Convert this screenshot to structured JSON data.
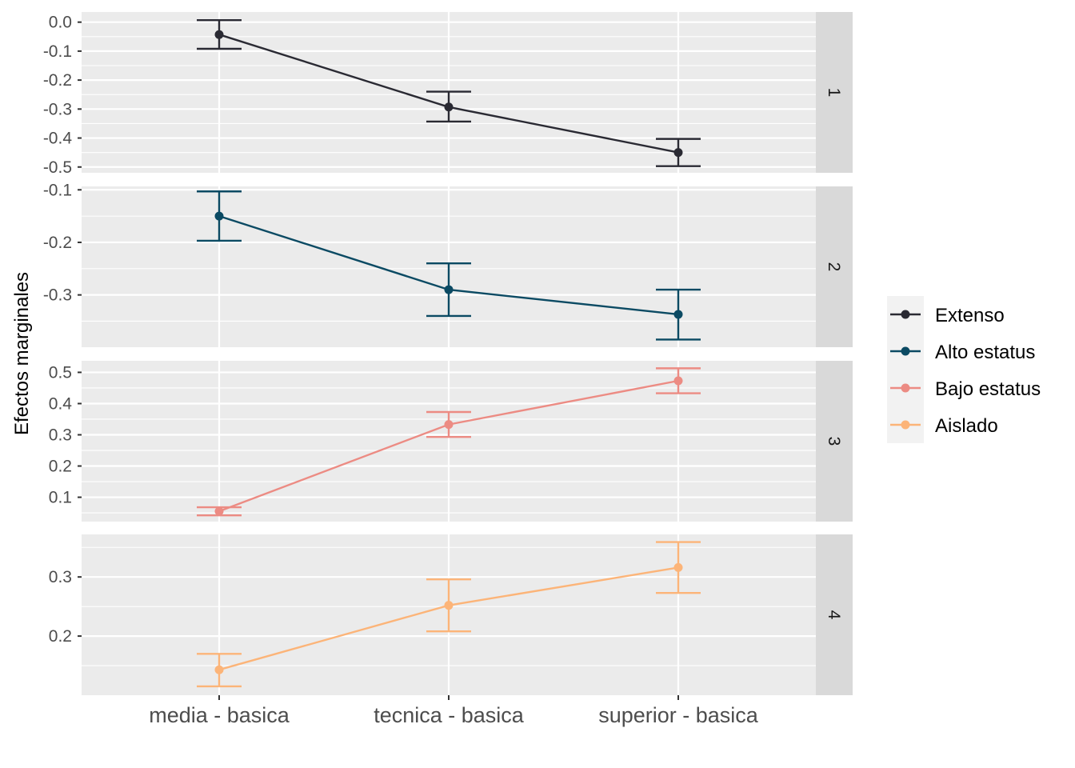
{
  "chart_data": {
    "type": "line",
    "ylabel": "Efectos marginales",
    "categories": [
      "media - basica",
      "tecnica - basica",
      "superior - basica"
    ],
    "colors": {
      "panel_bg": "#ebebeb",
      "strip_bg": "#d9d9d9",
      "grid": "#ffffff"
    },
    "legend": {
      "position": "right"
    },
    "facets": [
      {
        "strip": "1",
        "series": "Extenso",
        "color": "#2a2a33",
        "ylim": [
          -0.52,
          0.035
        ],
        "ticks": [
          0.0,
          -0.1,
          -0.2,
          -0.3,
          -0.4,
          -0.5
        ],
        "tick_labels": [
          "0.0",
          "-0.1",
          "-0.2",
          "-0.3",
          "-0.4",
          "-0.5"
        ],
        "values": [
          -0.043,
          -0.293,
          -0.45
        ],
        "lower": [
          -0.092,
          -0.343,
          -0.497
        ],
        "upper": [
          0.007,
          -0.24,
          -0.403
        ]
      },
      {
        "strip": "2",
        "series": "Alto estatus",
        "color": "#0b4a63",
        "ylim": [
          -0.3995,
          -0.0935
        ],
        "ticks": [
          -0.1,
          -0.2,
          -0.3
        ],
        "tick_labels": [
          "-0.1",
          "-0.2",
          "-0.3"
        ],
        "values": [
          -0.15,
          -0.29,
          -0.337
        ],
        "lower": [
          -0.197,
          -0.34,
          -0.385
        ],
        "upper": [
          -0.103,
          -0.24,
          -0.29
        ]
      },
      {
        "strip": "3",
        "series": "Bajo estatus",
        "color": "#ec8b83",
        "ylim": [
          0.022,
          0.537
        ],
        "ticks": [
          0.1,
          0.2,
          0.3,
          0.4,
          0.5
        ],
        "tick_labels": [
          "0.1",
          "0.2",
          "0.3",
          "0.4",
          "0.5"
        ],
        "values": [
          0.055,
          0.333,
          0.473
        ],
        "lower": [
          0.042,
          0.293,
          0.433
        ],
        "upper": [
          0.068,
          0.373,
          0.513
        ]
      },
      {
        "strip": "4",
        "series": "Aislado",
        "color": "#fcb478",
        "ylim": [
          0.1,
          0.372
        ],
        "ticks": [
          0.2,
          0.3
        ],
        "tick_labels": [
          "0.2",
          "0.3"
        ],
        "values": [
          0.143,
          0.252,
          0.316
        ],
        "lower": [
          0.115,
          0.208,
          0.273
        ],
        "upper": [
          0.17,
          0.296,
          0.359
        ]
      }
    ]
  }
}
